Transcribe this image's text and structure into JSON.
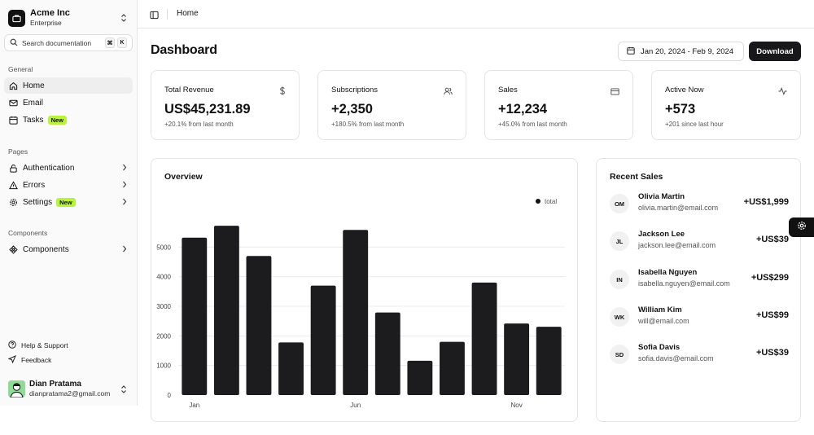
{
  "brand": {
    "name": "Acme Inc",
    "plan": "Enterprise"
  },
  "search": {
    "placeholder": "Search documentation",
    "key1": "⌘",
    "key2": "K"
  },
  "sidebar": {
    "general_label": "General",
    "general": [
      {
        "label": "Home",
        "icon": "home-icon",
        "active": true
      },
      {
        "label": "Email",
        "icon": "mail-icon"
      },
      {
        "label": "Tasks",
        "icon": "calendar-icon",
        "badge": "New"
      }
    ],
    "pages_label": "Pages",
    "pages": [
      {
        "label": "Authentication",
        "icon": "lock-icon"
      },
      {
        "label": "Errors",
        "icon": "warning-icon"
      },
      {
        "label": "Settings",
        "icon": "gear-icon",
        "badge": "New"
      }
    ],
    "components_label": "Components",
    "components": [
      {
        "label": "Components",
        "icon": "components-icon"
      }
    ],
    "footer": [
      {
        "label": "Help & Support",
        "icon": "help-icon"
      },
      {
        "label": "Feedback",
        "icon": "send-icon"
      }
    ],
    "user": {
      "name": "Dian Pratama",
      "email": "dianpratama2@gmail.com"
    }
  },
  "header": {
    "breadcrumb": "Home"
  },
  "page": {
    "title": "Dashboard",
    "date_range": "Jan 20, 2024 - Feb 9, 2024",
    "download": "Download"
  },
  "stats": [
    {
      "title": "Total Revenue",
      "value": "US$45,231.89",
      "sub": "+20.1% from last month",
      "icon": "dollar-icon"
    },
    {
      "title": "Subscriptions",
      "value": "+2,350",
      "sub": "+180.5% from last month",
      "icon": "users-icon"
    },
    {
      "title": "Sales",
      "value": "+12,234",
      "sub": "+45.0% from last month",
      "icon": "credit-card-icon"
    },
    {
      "title": "Active Now",
      "value": "+573",
      "sub": "+201 since last hour",
      "icon": "activity-icon"
    }
  ],
  "overview": {
    "title": "Overview"
  },
  "recent_sales": {
    "title": "Recent Sales",
    "items": [
      {
        "initials": "OM",
        "name": "Olivia Martin",
        "email": "olivia.martin@email.com",
        "amount": "+US$1,999"
      },
      {
        "initials": "JL",
        "name": "Jackson Lee",
        "email": "jackson.lee@email.com",
        "amount": "+US$39"
      },
      {
        "initials": "IN",
        "name": "Isabella Nguyen",
        "email": "isabella.nguyen@email.com",
        "amount": "+US$299"
      },
      {
        "initials": "WK",
        "name": "William Kim",
        "email": "will@email.com",
        "amount": "+US$99"
      },
      {
        "initials": "SD",
        "name": "Sofia Davis",
        "email": "sofia.davis@email.com",
        "amount": "+US$39"
      }
    ]
  },
  "chart_data": {
    "type": "bar",
    "categories": [
      "Jan",
      "Feb",
      "Mar",
      "Apr",
      "May",
      "Jun",
      "Jul",
      "Aug",
      "Sep",
      "Oct",
      "Nov",
      "Dec"
    ],
    "x_tick_labels": [
      "Jan",
      "Jun",
      "Nov"
    ],
    "series": [
      {
        "name": "total",
        "values": [
          5320,
          5720,
          4700,
          1780,
          3700,
          5580,
          2790,
          1160,
          1800,
          3800,
          2420,
          2310
        ]
      }
    ],
    "yticks": [
      0,
      1000,
      2000,
      3000,
      4000,
      5000
    ],
    "ylim": [
      0,
      6000
    ],
    "grid": true,
    "legend": "top-right",
    "bar_color": "#1c1c1e"
  }
}
